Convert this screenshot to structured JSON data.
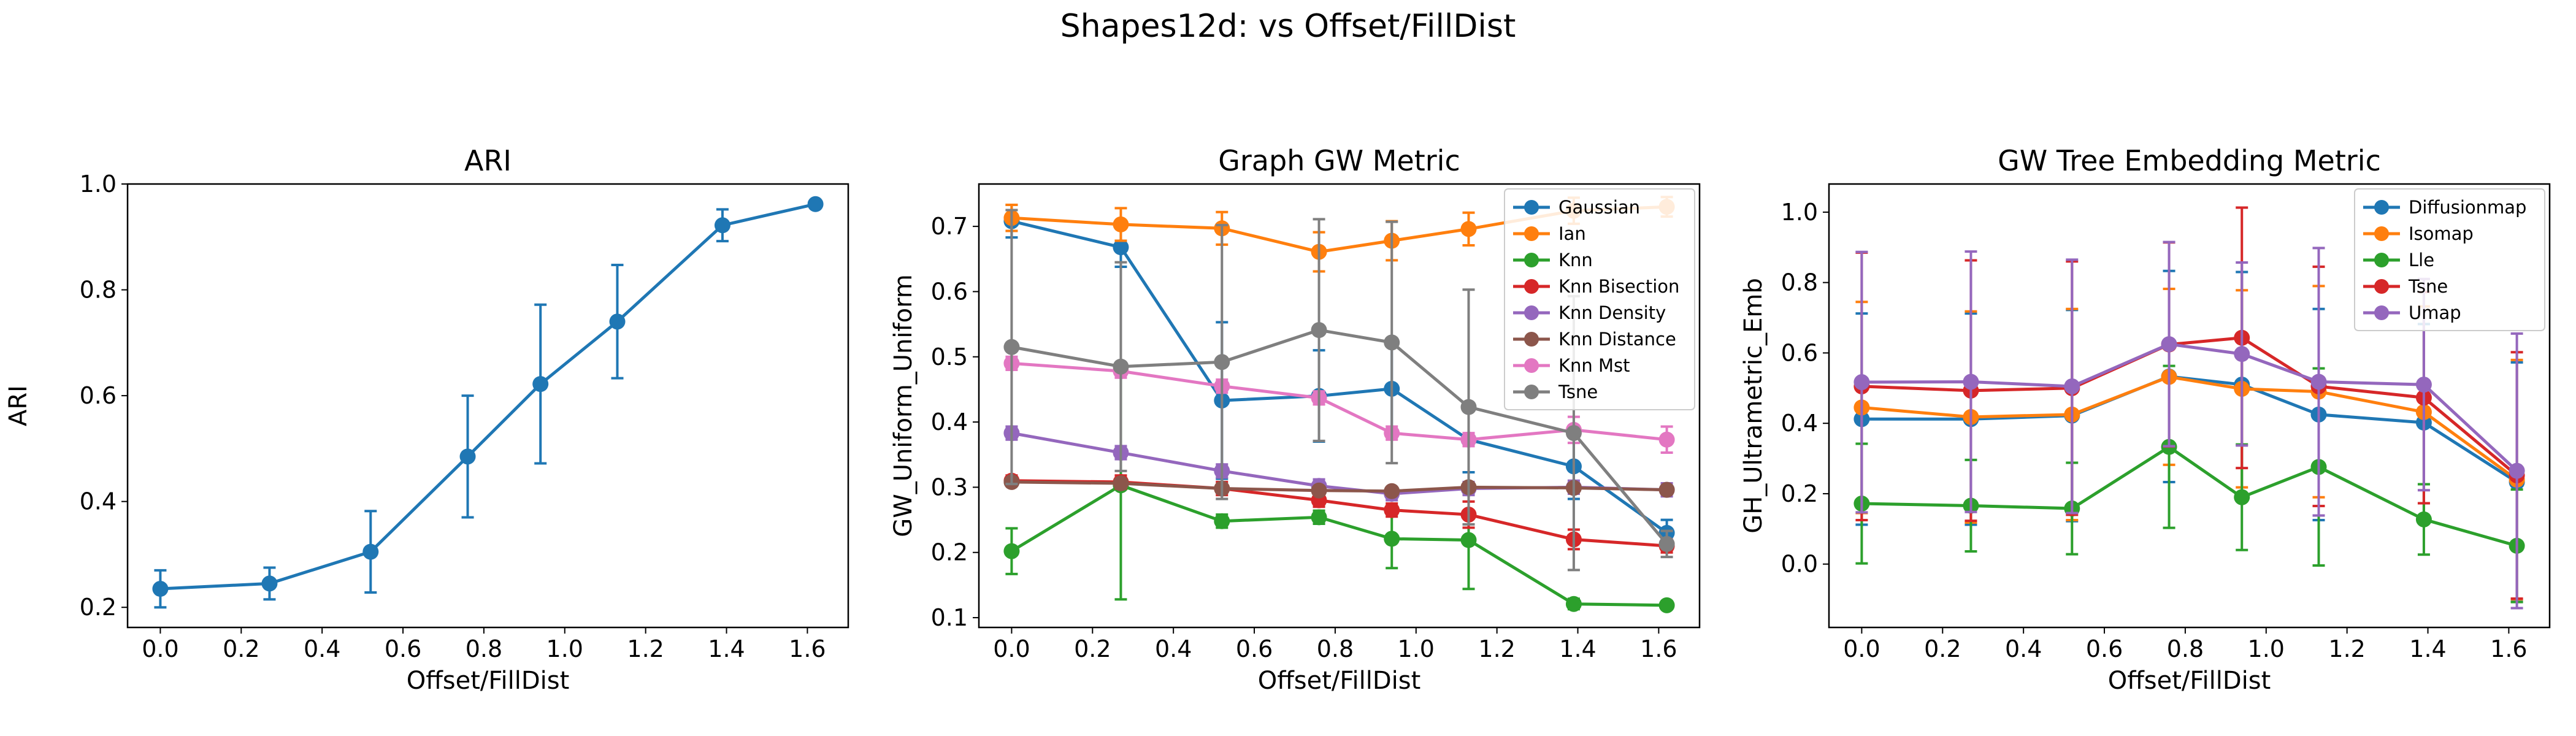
{
  "figure": {
    "suptitle": "Shapes12d: vs Offset/FillDist"
  },
  "chart_data": [
    {
      "type": "line",
      "title": "ARI",
      "xlabel": "Offset/FillDist",
      "ylabel": "ARI",
      "xlim": [
        -0.081,
        1.701
      ],
      "ylim": [
        0.162,
        1.0
      ],
      "xticks": [
        0.0,
        0.2,
        0.4,
        0.6,
        0.8,
        1.0,
        1.2,
        1.4,
        1.6
      ],
      "xtick_labels": [
        "0.0",
        "0.2",
        "0.4",
        "0.6",
        "0.8",
        "1.0",
        "1.2",
        "1.4",
        "1.6"
      ],
      "yticks": [
        0.2,
        0.4,
        0.6,
        0.8,
        1.0
      ],
      "ytick_labels": [
        "0.2",
        "0.4",
        "0.6",
        "0.8",
        "1.0"
      ],
      "x": [
        0.0,
        0.27,
        0.52,
        0.76,
        0.94,
        1.13,
        1.39,
        1.62
      ],
      "series": [
        {
          "name": "",
          "color": "#1f77b4",
          "values": [
            0.235,
            0.245,
            0.305,
            0.485,
            0.622,
            0.74,
            0.922,
            0.962
          ],
          "errors": [
            0.035,
            0.03,
            0.077,
            0.115,
            0.15,
            0.107,
            0.03,
            0.0
          ]
        }
      ]
    },
    {
      "type": "line",
      "title": "Graph GW Metric",
      "xlabel": "Offset/FillDist",
      "ylabel": "GW_Uniform_Uniform",
      "xlim": [
        -0.081,
        1.701
      ],
      "ylim": [
        0.085,
        0.765
      ],
      "xticks": [
        0.0,
        0.2,
        0.4,
        0.6,
        0.8,
        1.0,
        1.2,
        1.4,
        1.6
      ],
      "xtick_labels": [
        "0.0",
        "0.2",
        "0.4",
        "0.6",
        "0.8",
        "1.0",
        "1.2",
        "1.4",
        "1.6"
      ],
      "yticks": [
        0.1,
        0.2,
        0.3,
        0.4,
        0.5,
        0.6,
        0.7
      ],
      "ytick_labels": [
        "0.1",
        "0.2",
        "0.3",
        "0.4",
        "0.5",
        "0.6",
        "0.7"
      ],
      "legend_position": "top-right",
      "x": [
        0.0,
        0.27,
        0.52,
        0.76,
        0.94,
        1.13,
        1.39,
        1.62
      ],
      "series": [
        {
          "name": "Gaussian",
          "color": "#1f77b4",
          "values": [
            0.708,
            0.668,
            0.433,
            0.44,
            0.451,
            0.373,
            0.332,
            0.23
          ],
          "errors": [
            0.025,
            0.03,
            0.12,
            0.07,
            0.07,
            0.05,
            0.05,
            0.02
          ]
        },
        {
          "name": "Ian",
          "color": "#ff7f0e",
          "values": [
            0.713,
            0.703,
            0.697,
            0.661,
            0.678,
            0.696,
            0.724,
            0.73
          ],
          "errors": [
            0.02,
            0.025,
            0.025,
            0.03,
            0.03,
            0.025,
            0.02,
            0.015
          ]
        },
        {
          "name": "Knn",
          "color": "#2ca02c",
          "values": [
            0.202,
            0.303,
            0.248,
            0.254,
            0.221,
            0.219,
            0.121,
            0.119
          ],
          "errors": [
            0.035,
            0.175,
            0.01,
            0.01,
            0.045,
            0.075,
            0.008,
            0.005
          ]
        },
        {
          "name": "Knn Bisection",
          "color": "#d62728",
          "values": [
            0.31,
            0.308,
            0.298,
            0.28,
            0.265,
            0.258,
            0.22,
            0.21
          ],
          "errors": [
            0.008,
            0.01,
            0.01,
            0.01,
            0.01,
            0.02,
            0.015,
            0.01
          ]
        },
        {
          "name": "Knn Density",
          "color": "#9467bd",
          "values": [
            0.383,
            0.353,
            0.325,
            0.302,
            0.29,
            0.298,
            0.3,
            0.296
          ],
          "errors": [
            0.01,
            0.01,
            0.01,
            0.01,
            0.01,
            0.01,
            0.01,
            0.01
          ]
        },
        {
          "name": "Knn Distance",
          "color": "#8c564b",
          "values": [
            0.308,
            0.306,
            0.298,
            0.295,
            0.294,
            0.3,
            0.299,
            0.296
          ],
          "errors": [
            0.005,
            0.005,
            0.005,
            0.005,
            0.005,
            0.005,
            0.005,
            0.005
          ]
        },
        {
          "name": "Knn Mst",
          "color": "#e377c2",
          "values": [
            0.49,
            0.478,
            0.455,
            0.437,
            0.383,
            0.373,
            0.388,
            0.373
          ],
          "errors": [
            0.01,
            0.01,
            0.01,
            0.01,
            0.01,
            0.01,
            0.02,
            0.02
          ]
        },
        {
          "name": "Tsne",
          "color": "#7f7f7f",
          "values": [
            0.515,
            0.485,
            0.492,
            0.541,
            0.522,
            0.423,
            0.383,
            0.213
          ],
          "errors": [
            0.21,
            0.16,
            0.21,
            0.17,
            0.185,
            0.18,
            0.21,
            0.02
          ]
        }
      ]
    },
    {
      "type": "line",
      "title": "GW Tree Embedding Metric",
      "xlabel": "Offset/FillDist",
      "ylabel": "GH_Ultrametric_Emb",
      "xlim": [
        -0.081,
        1.701
      ],
      "ylim": [
        -0.18,
        1.08
      ],
      "xticks": [
        0.0,
        0.2,
        0.4,
        0.6,
        0.8,
        1.0,
        1.2,
        1.4,
        1.6
      ],
      "xtick_labels": [
        "0.0",
        "0.2",
        "0.4",
        "0.6",
        "0.8",
        "1.0",
        "1.2",
        "1.4",
        "1.6"
      ],
      "yticks": [
        0.0,
        0.2,
        0.4,
        0.6,
        0.8,
        1.0
      ],
      "ytick_labels": [
        "0.0",
        "0.2",
        "0.4",
        "0.6",
        "0.8",
        "1.0"
      ],
      "legend_position": "top-right",
      "x": [
        0.0,
        0.27,
        0.52,
        0.76,
        0.94,
        1.13,
        1.39,
        1.62
      ],
      "series": [
        {
          "name": "Diffusionmap",
          "color": "#1f77b4",
          "values": [
            0.412,
            0.412,
            0.422,
            0.533,
            0.51,
            0.425,
            0.402,
            0.233
          ],
          "errors": [
            0.3,
            0.3,
            0.3,
            0.3,
            0.32,
            0.3,
            0.28,
            0.34
          ]
        },
        {
          "name": "Isomap",
          "color": "#ff7f0e",
          "values": [
            0.445,
            0.418,
            0.425,
            0.532,
            0.498,
            0.49,
            0.432,
            0.24
          ],
          "errors": [
            0.3,
            0.3,
            0.3,
            0.25,
            0.28,
            0.3,
            0.3,
            0.34
          ]
        },
        {
          "name": "Lle",
          "color": "#2ca02c",
          "values": [
            0.172,
            0.166,
            0.158,
            0.333,
            0.19,
            0.276,
            0.127,
            0.052
          ],
          "errors": [
            0.17,
            0.13,
            0.13,
            0.23,
            0.15,
            0.28,
            0.1,
            0.16
          ]
        },
        {
          "name": "Tsne",
          "color": "#d62728",
          "values": [
            0.505,
            0.493,
            0.5,
            0.624,
            0.643,
            0.505,
            0.473,
            0.252
          ],
          "errors": [
            0.38,
            0.37,
            0.36,
            0.29,
            0.37,
            0.34,
            0.3,
            0.35
          ]
        },
        {
          "name": "Umap",
          "color": "#9467bd",
          "values": [
            0.517,
            0.518,
            0.505,
            0.625,
            0.597,
            0.518,
            0.51,
            0.265
          ],
          "errors": [
            0.37,
            0.37,
            0.36,
            0.29,
            0.26,
            0.38,
            0.3,
            0.39
          ]
        }
      ]
    }
  ]
}
